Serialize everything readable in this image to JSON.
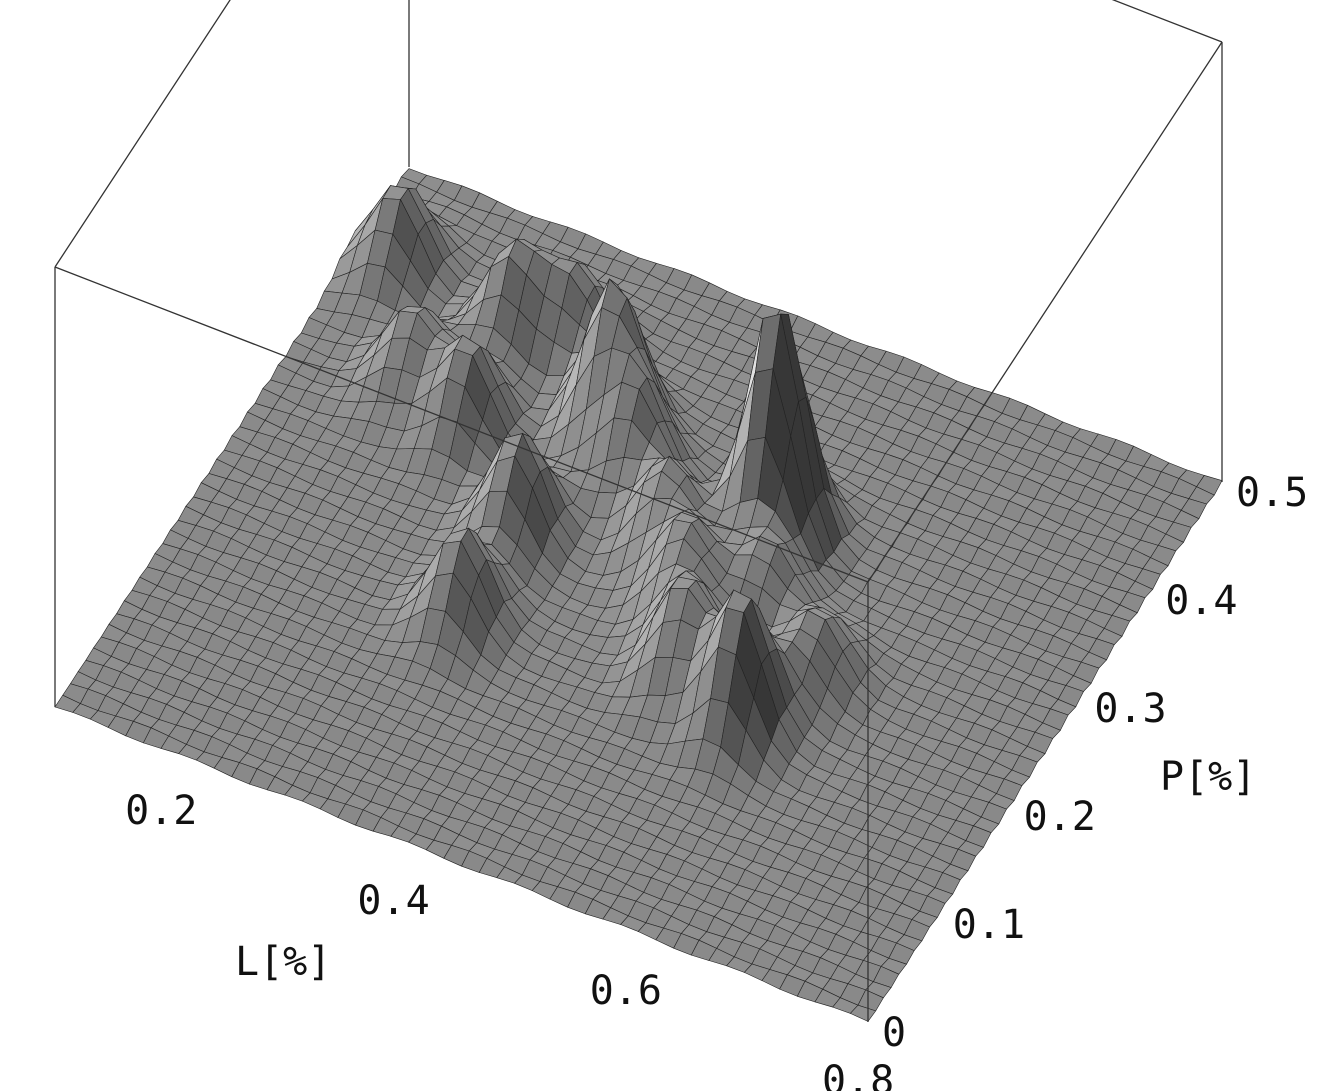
{
  "chart_data": {
    "type": "surface3d",
    "xlabel": "L[%]",
    "ylabel": "P[%]",
    "zlabel": "",
    "xlim": [
      0.1,
      0.8
    ],
    "ylim": [
      0,
      0.5
    ],
    "x_ticks": [
      "0.2",
      "0.4",
      "0.6",
      "0.8"
    ],
    "y_ticks": [
      "0",
      "0.1",
      "0.2",
      "0.3",
      "0.4",
      "0.5"
    ],
    "grid": false,
    "box": true,
    "surface_color": "#8c8c8c",
    "mesh_color": "#222222",
    "peaks": [
      {
        "L": 0.2,
        "P": 0.34,
        "height": 0.32
      },
      {
        "L": 0.14,
        "P": 0.42,
        "height": 0.36
      },
      {
        "L": 0.25,
        "P": 0.4,
        "height": 0.4
      },
      {
        "L": 0.3,
        "P": 0.41,
        "height": 0.34
      },
      {
        "L": 0.26,
        "P": 0.32,
        "height": 0.38
      },
      {
        "L": 0.36,
        "P": 0.36,
        "height": 0.62
      },
      {
        "L": 0.4,
        "P": 0.33,
        "height": 0.4
      },
      {
        "L": 0.34,
        "P": 0.26,
        "height": 0.42
      },
      {
        "L": 0.34,
        "P": 0.18,
        "height": 0.38
      },
      {
        "L": 0.45,
        "P": 0.29,
        "height": 0.36
      },
      {
        "L": 0.52,
        "P": 0.33,
        "height": 1.0
      },
      {
        "L": 0.49,
        "P": 0.25,
        "height": 0.36
      },
      {
        "L": 0.52,
        "P": 0.2,
        "height": 0.4
      },
      {
        "L": 0.58,
        "P": 0.18,
        "height": 0.56
      },
      {
        "L": 0.55,
        "P": 0.27,
        "height": 0.3
      },
      {
        "L": 0.61,
        "P": 0.24,
        "height": 0.26
      }
    ]
  }
}
